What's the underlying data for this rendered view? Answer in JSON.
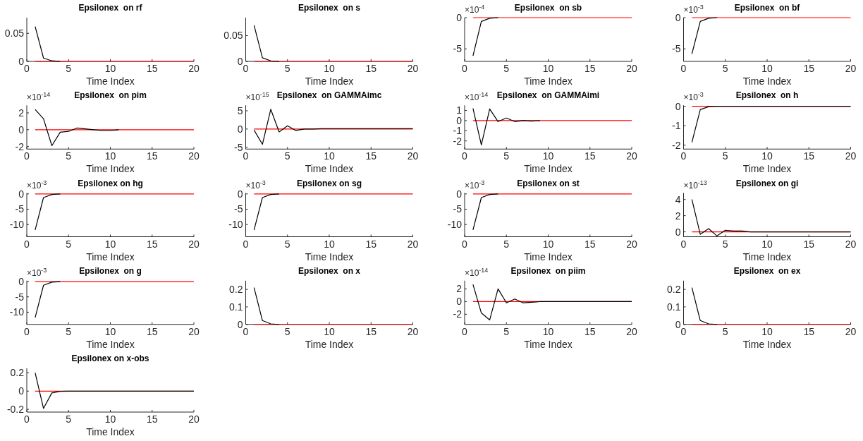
{
  "chart_data": [
    {
      "type": "line",
      "title": "Epsilonex  on rf",
      "xlabel": "Time Index",
      "xlim": [
        0,
        20
      ],
      "xticks": [
        0,
        5,
        10,
        15,
        20
      ],
      "ylim": [
        0,
        0.078
      ],
      "yticks": [
        0,
        0.05
      ],
      "x": [
        1,
        2,
        3,
        4
      ],
      "series": [
        {
          "color": "#000000",
          "values": [
            0.062,
            0.006,
            0.001,
            0
          ]
        }
      ],
      "ref_lines": [
        {
          "axis": "y",
          "value": 0,
          "color": "#ff0000"
        }
      ]
    },
    {
      "type": "line",
      "title": "Epsilonex  on s",
      "xlabel": "Time Index",
      "xlim": [
        0,
        20
      ],
      "xticks": [
        0,
        5,
        10,
        15,
        20
      ],
      "ylim": [
        0,
        0.085
      ],
      "yticks": [
        0,
        0.05
      ],
      "x": [
        1,
        2,
        3,
        4
      ],
      "series": [
        {
          "color": "#000000",
          "values": [
            0.07,
            0.007,
            0.001,
            0
          ]
        }
      ],
      "ref_lines": [
        {
          "axis": "y",
          "value": 0,
          "color": "#ff0000"
        }
      ]
    },
    {
      "type": "line",
      "title": "Epsilonex  on sb",
      "xlabel": "Time Index",
      "annotations": [
        "×10$^{-4}$"
      ],
      "xlim": [
        0,
        20
      ],
      "xticks": [
        0,
        5,
        10,
        15,
        20
      ],
      "ylim": [
        -7,
        0
      ],
      "yticks": [
        -5,
        0
      ],
      "x": [
        1,
        2,
        3,
        4
      ],
      "series": [
        {
          "color": "#000000",
          "values": [
            -6.1,
            -0.6,
            -0.1,
            0
          ]
        }
      ],
      "ref_lines": [
        {
          "axis": "y",
          "value": 0,
          "color": "#ff0000"
        }
      ]
    },
    {
      "type": "line",
      "title": "Epsilonex  on bf",
      "xlabel": "Time Index",
      "annotations": [
        "×10$^{-3}$"
      ],
      "xlim": [
        0,
        20
      ],
      "xticks": [
        0,
        5,
        10,
        15,
        20
      ],
      "ylim": [
        -7,
        0
      ],
      "yticks": [
        -5,
        0
      ],
      "x": [
        1,
        2,
        3,
        4
      ],
      "series": [
        {
          "color": "#000000",
          "values": [
            -5.8,
            -0.6,
            -0.1,
            0
          ]
        }
      ],
      "ref_lines": [
        {
          "axis": "y",
          "value": 0,
          "color": "#ff0000"
        }
      ]
    },
    {
      "type": "line",
      "title": "Epsilonex  on pim",
      "xlabel": "Time Index",
      "annotations": [
        "×10$^{-14}$"
      ],
      "xlim": [
        0,
        20
      ],
      "xticks": [
        0,
        5,
        10,
        15,
        20
      ],
      "ylim": [
        -2.3,
        2.9
      ],
      "yticks": [
        -2,
        0,
        2
      ],
      "x": [
        1,
        2,
        3,
        4,
        5,
        6,
        7,
        8,
        9,
        10,
        11
      ],
      "series": [
        {
          "color": "#000000",
          "values": [
            2.4,
            1.3,
            -1.9,
            -0.3,
            -0.2,
            0.2,
            0.1,
            0,
            -0.1,
            -0.1,
            0
          ]
        }
      ],
      "ref_lines": [
        {
          "axis": "y",
          "value": 0,
          "color": "#ff0000"
        }
      ]
    },
    {
      "type": "line",
      "title": "Epsilonex  on GAMMAimc",
      "xlabel": "Time Index",
      "annotations": [
        "×10$^{-15}$"
      ],
      "xlim": [
        0,
        20
      ],
      "xticks": [
        0,
        5,
        10,
        15,
        20
      ],
      "ylim": [
        -5.5,
        6.5
      ],
      "yticks": [
        -5,
        0,
        5
      ],
      "x": [
        1,
        2,
        3,
        4,
        5,
        6,
        7,
        8,
        9,
        10,
        11,
        12,
        13,
        14,
        15,
        16,
        17,
        18,
        19,
        20
      ],
      "series": [
        {
          "color": "#000000",
          "values": [
            -0.3,
            -4.2,
            5.4,
            -0.8,
            0.9,
            -0.4,
            0,
            0,
            0.1,
            0.1,
            0.1,
            0.1,
            0.1,
            0.1,
            0.1,
            0.1,
            0.1,
            0.1,
            0.1,
            0.1
          ]
        }
      ],
      "ref_lines": [
        {
          "axis": "y",
          "value": 0,
          "color": "#ff0000"
        }
      ]
    },
    {
      "type": "line",
      "title": "Epsilonex  on GAMMAimi",
      "xlabel": "Time Index",
      "annotations": [
        "×10$^{-14}$"
      ],
      "xlim": [
        0,
        20
      ],
      "xticks": [
        0,
        5,
        10,
        15,
        20
      ],
      "ylim": [
        -2.8,
        1.5
      ],
      "yticks": [
        -2,
        -1,
        0,
        1
      ],
      "x": [
        1,
        2,
        3,
        4,
        5,
        6,
        7,
        8,
        9
      ],
      "series": [
        {
          "color": "#000000",
          "values": [
            1.2,
            -2.4,
            1.15,
            -0.1,
            0.25,
            -0.1,
            0,
            -0.05,
            0
          ]
        }
      ],
      "ref_lines": [
        {
          "axis": "y",
          "value": 0,
          "color": "#ff0000"
        }
      ]
    },
    {
      "type": "line",
      "title": "Epsilonex  on h",
      "xlabel": "Time Index",
      "annotations": [
        "×10$^{-3}$"
      ],
      "xlim": [
        0,
        20
      ],
      "xticks": [
        0,
        5,
        10,
        15,
        20
      ],
      "ylim": [
        -2.2,
        0.05
      ],
      "yticks": [
        -2,
        -1,
        0
      ],
      "x": [
        1,
        2,
        3,
        4,
        5,
        6,
        7,
        8,
        9,
        10,
        11,
        12,
        13,
        14,
        15,
        16,
        17,
        18,
        19,
        20
      ],
      "series": [
        {
          "color": "#000000",
          "values": [
            -1.85,
            -0.17,
            -0.02,
            0,
            0,
            0,
            0,
            0,
            0,
            0,
            0,
            0,
            0,
            0,
            0,
            0,
            0,
            0,
            0,
            0
          ]
        }
      ],
      "ref_lines": [
        {
          "axis": "y",
          "value": 0,
          "color": "#ff0000"
        }
      ]
    },
    {
      "type": "line",
      "title": "Epsilonex on hg",
      "xlabel": "Time Index",
      "annotations": [
        "×10$^{-3}$"
      ],
      "xlim": [
        0,
        20
      ],
      "xticks": [
        0,
        5,
        10,
        15,
        20
      ],
      "ylim": [
        -14,
        0.3
      ],
      "yticks": [
        -10,
        -5,
        0
      ],
      "x": [
        1,
        2,
        3,
        4
      ],
      "series": [
        {
          "color": "#000000",
          "values": [
            -11.8,
            -1.2,
            -0.2,
            0
          ]
        }
      ],
      "ref_lines": [
        {
          "axis": "y",
          "value": 0,
          "color": "#ff0000"
        }
      ]
    },
    {
      "type": "line",
      "title": "Epsilonex on sg",
      "xlabel": "Time Index",
      "annotations": [
        "×10$^{-3}$"
      ],
      "xlim": [
        0,
        20
      ],
      "xticks": [
        0,
        5,
        10,
        15,
        20
      ],
      "ylim": [
        -14,
        0.3
      ],
      "yticks": [
        -10,
        -5,
        0
      ],
      "x": [
        1,
        2,
        3,
        4
      ],
      "series": [
        {
          "color": "#000000",
          "values": [
            -11.8,
            -1.2,
            -0.2,
            0
          ]
        }
      ],
      "ref_lines": [
        {
          "axis": "y",
          "value": 0,
          "color": "#ff0000"
        }
      ]
    },
    {
      "type": "line",
      "title": "Epsilonex on st",
      "xlabel": "Time Index",
      "annotations": [
        "×10$^{-3}$"
      ],
      "xlim": [
        0,
        20
      ],
      "xticks": [
        0,
        5,
        10,
        15,
        20
      ],
      "ylim": [
        -14,
        0.3
      ],
      "yticks": [
        -10,
        -5,
        0
      ],
      "x": [
        1,
        2,
        3,
        4
      ],
      "series": [
        {
          "color": "#000000",
          "values": [
            -11.8,
            -1.2,
            -0.2,
            0
          ]
        }
      ],
      "ref_lines": [
        {
          "axis": "y",
          "value": 0,
          "color": "#ff0000"
        }
      ]
    },
    {
      "type": "line",
      "title": "Epsilonex on gi",
      "xlabel": "Time Index",
      "annotations": [
        "×10$^{-13}$"
      ],
      "xlim": [
        0,
        20
      ],
      "xticks": [
        0,
        5,
        10,
        15,
        20
      ],
      "ylim": [
        -0.6,
        4.8
      ],
      "yticks": [
        0,
        2,
        4
      ],
      "x": [
        1,
        2,
        3,
        4,
        5,
        6,
        7,
        8,
        9,
        10,
        11,
        12,
        13,
        14,
        15,
        16,
        17,
        18,
        19,
        20
      ],
      "series": [
        {
          "color": "#000000",
          "values": [
            4,
            -0.3,
            0.4,
            -0.5,
            0.2,
            0.1,
            0.1,
            0,
            0,
            0,
            0,
            0,
            0,
            0,
            0,
            0,
            0,
            0,
            0,
            0
          ]
        }
      ],
      "ref_lines": [
        {
          "axis": "y",
          "value": 0,
          "color": "#ff0000"
        }
      ]
    },
    {
      "type": "line",
      "title": "Epsilonex  on g",
      "xlabel": "Time Index",
      "annotations": [
        "×10$^{-3}$"
      ],
      "xlim": [
        0,
        20
      ],
      "xticks": [
        0,
        5,
        10,
        15,
        20
      ],
      "ylim": [
        -14,
        0.3
      ],
      "yticks": [
        -10,
        -5,
        0
      ],
      "x": [
        1,
        2,
        3,
        4
      ],
      "series": [
        {
          "color": "#000000",
          "values": [
            -11.8,
            -1.2,
            -0.2,
            0
          ]
        }
      ],
      "ref_lines": [
        {
          "axis": "y",
          "value": 0,
          "color": "#ff0000"
        }
      ]
    },
    {
      "type": "line",
      "title": "Epsilonex  on x",
      "xlabel": "Time Index",
      "xlim": [
        0,
        20
      ],
      "xticks": [
        0,
        5,
        10,
        15,
        20
      ],
      "ylim": [
        0,
        0.25
      ],
      "yticks": [
        0,
        0.1,
        0.2
      ],
      "x": [
        1,
        2,
        3,
        4
      ],
      "series": [
        {
          "color": "#000000",
          "values": [
            0.21,
            0.022,
            0.003,
            0
          ]
        }
      ],
      "ref_lines": [
        {
          "axis": "y",
          "value": 0,
          "color": "#ff0000"
        }
      ]
    },
    {
      "type": "line",
      "title": "Epsilonex  on piim",
      "xlabel": "Time Index",
      "annotations": [
        "×10$^{-14}$"
      ],
      "xlim": [
        0,
        20
      ],
      "xticks": [
        0,
        5,
        10,
        15,
        20
      ],
      "ylim": [
        -3.6,
        3.3
      ],
      "yticks": [
        -2,
        0,
        2
      ],
      "x": [
        1,
        2,
        3,
        4,
        5,
        6,
        7,
        8,
        9,
        10,
        11,
        12,
        13,
        14,
        15,
        16,
        17,
        18,
        19,
        20
      ],
      "series": [
        {
          "color": "#000000",
          "values": [
            2.7,
            -1.8,
            -2.9,
            2.0,
            -0.2,
            0.4,
            -0.2,
            -0.1,
            0,
            0,
            0,
            0,
            0,
            0,
            0,
            0,
            0,
            0,
            0,
            0
          ]
        }
      ],
      "ref_lines": [
        {
          "axis": "y",
          "value": 0,
          "color": "#ff0000"
        }
      ]
    },
    {
      "type": "line",
      "title": "Epsilonex  on ex",
      "xlabel": "Time Index",
      "xlim": [
        0,
        20
      ],
      "xticks": [
        0,
        5,
        10,
        15,
        20
      ],
      "ylim": [
        0,
        0.25
      ],
      "yticks": [
        0,
        0.1,
        0.2
      ],
      "x": [
        1,
        2,
        3,
        4
      ],
      "series": [
        {
          "color": "#000000",
          "values": [
            0.21,
            0.022,
            0.003,
            0
          ]
        }
      ],
      "ref_lines": [
        {
          "axis": "y",
          "value": 0,
          "color": "#ff0000"
        }
      ]
    },
    {
      "type": "line",
      "title": "Epsilonex on x-obs",
      "xlabel": "Time Index",
      "xlim": [
        0,
        20
      ],
      "xticks": [
        0,
        5,
        10,
        15,
        20
      ],
      "ylim": [
        -0.23,
        0.25
      ],
      "yticks": [
        -0.2,
        0,
        0.2
      ],
      "x": [
        1,
        2,
        3,
        4,
        5,
        6,
        7,
        8,
        9,
        10,
        11,
        12,
        13,
        14,
        15,
        16,
        17,
        18,
        19,
        20
      ],
      "series": [
        {
          "color": "#000000",
          "values": [
            0.2,
            -0.19,
            -0.02,
            -0.003,
            0,
            0,
            0,
            0,
            0,
            0,
            0,
            0,
            0,
            0,
            0,
            0,
            0,
            0,
            0,
            0
          ]
        }
      ],
      "ref_lines": [
        {
          "axis": "y",
          "value": 0,
          "color": "#ff0000"
        }
      ]
    }
  ]
}
